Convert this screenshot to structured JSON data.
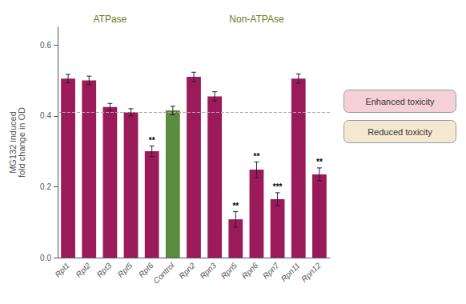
{
  "chart_data": {
    "type": "bar",
    "categories": [
      "Rpt1",
      "Rpt2",
      "Rpt3",
      "Rpt5",
      "Rpt6",
      "Control",
      "Rpn2",
      "Rpn3",
      "Rpn5",
      "Rpn6",
      "Rpn7",
      "Rpn11",
      "Rpn12"
    ],
    "values": [
      0.505,
      0.5,
      0.425,
      0.41,
      0.3,
      0.415,
      0.51,
      0.455,
      0.108,
      0.248,
      0.165,
      0.505,
      0.235
    ],
    "errors": [
      0.012,
      0.012,
      0.01,
      0.01,
      0.015,
      0.012,
      0.013,
      0.013,
      0.022,
      0.022,
      0.018,
      0.013,
      0.018
    ],
    "colors": [
      "#9B1B5A",
      "#9B1B5A",
      "#9B1B5A",
      "#9B1B5A",
      "#9B1B5A",
      "#5B8C3E",
      "#9B1B5A",
      "#9B1B5A",
      "#9B1B5A",
      "#9B1B5A",
      "#9B1B5A",
      "#9B1B5A",
      "#9B1B5A"
    ],
    "significance": [
      null,
      null,
      null,
      null,
      "**",
      null,
      null,
      null,
      "**",
      "**",
      "***",
      null,
      "**"
    ],
    "reference_line": 0.415,
    "ylabel": "MG132 induced\nfold change in OD",
    "ylim": [
      0.0,
      0.65
    ],
    "yticks": [
      {
        "value": 0.0,
        "label": "0.0"
      },
      0.2,
      0.4,
      0.6
    ],
    "grid": false,
    "group_labels": [
      {
        "text": "ATPase",
        "from": "Rpt1",
        "to": "Rpt6",
        "color": "#6a7a20"
      },
      {
        "text": "Non-ATPAse",
        "from": "Rpn2",
        "to": "Rpn12",
        "color": "#6a7a20"
      }
    ],
    "notes": [
      {
        "text": "Enhanced toxicity",
        "color": "#f5d0d8"
      },
      {
        "text": "Reduced toxicity",
        "color": "#f5e8d0"
      }
    ]
  }
}
